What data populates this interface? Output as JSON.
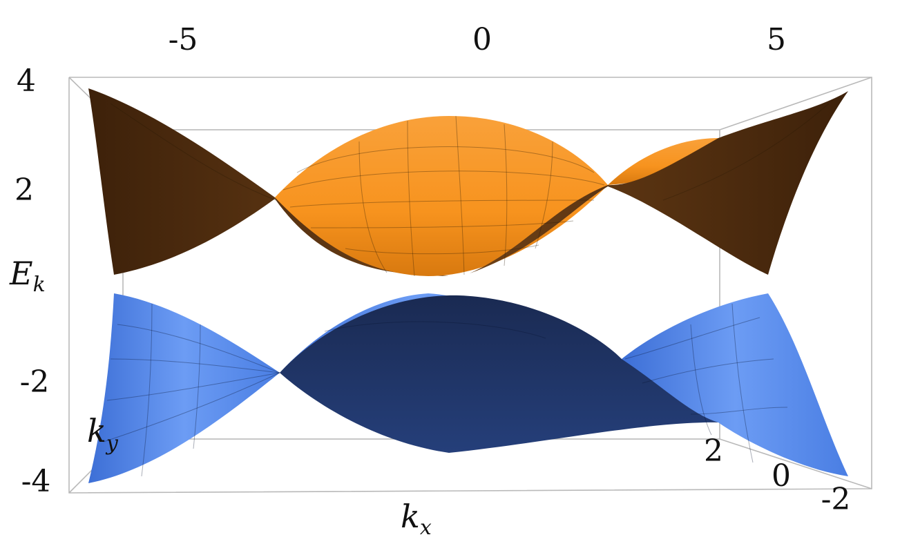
{
  "chart_data": {
    "type": "surface3d",
    "title": "",
    "axes": {
      "x": {
        "label": "k",
        "label_sub": "x",
        "ticks": [
          "-5",
          "0",
          "5"
        ],
        "range": [
          -6.28,
          6.28
        ]
      },
      "y": {
        "label": "k",
        "label_sub": "y",
        "ticks": [
          "2",
          "0",
          "-2"
        ],
        "range": [
          -3.14,
          3.14
        ]
      },
      "z": {
        "label": "E",
        "label_sub": "k",
        "ticks": [
          "4",
          "2",
          "-2",
          "-4"
        ],
        "range": [
          -4,
          4
        ]
      }
    },
    "box": true,
    "series": [
      {
        "band": "upper",
        "colors": {
          "light": "#f7931e",
          "dark": "#5a3412"
        },
        "energy_at_kx": {
          "-6.28": 3.8,
          "-3.14": 1.7,
          "0": 3.0,
          "3.14": 1.7,
          "6.28": 3.8
        }
      },
      {
        "band": "lower",
        "colors": {
          "light": "#5b8ff0",
          "dark": "#1b2f5e"
        },
        "energy_at_kx": {
          "-6.28": -3.8,
          "-3.14": -1.7,
          "0": -3.0,
          "3.14": -1.7,
          "6.28": -3.8
        }
      }
    ]
  }
}
